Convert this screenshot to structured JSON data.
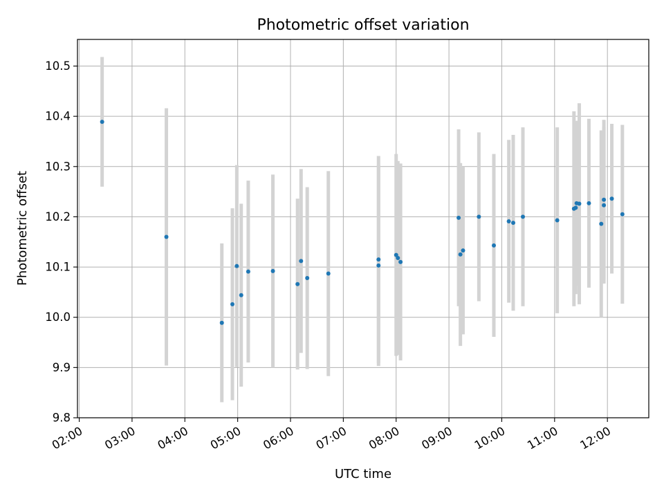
{
  "chart_data": {
    "type": "scatter",
    "title": "Photometric offset variation",
    "xlabel": "UTC time",
    "ylabel": "Photometric offset",
    "x_format": "HH:MM",
    "xlim": [
      "01:58",
      "12:47"
    ],
    "ylim": [
      9.8,
      10.553
    ],
    "grid": true,
    "x_ticks": [
      "02:00",
      "03:00",
      "04:00",
      "05:00",
      "06:00",
      "07:00",
      "08:00",
      "09:00",
      "10:00",
      "11:00",
      "12:00"
    ],
    "y_ticks": [
      9.8,
      9.9,
      10.0,
      10.1,
      10.2,
      10.3,
      10.4,
      10.5
    ],
    "colors": {
      "point": "#1f77b4",
      "errorbar": "#d3d3d3",
      "grid": "#b0b0b0"
    },
    "points": [
      {
        "x": "02:26",
        "y": 10.389,
        "err": 0.129
      },
      {
        "x": "03:39",
        "y": 10.16,
        "err": 0.256
      },
      {
        "x": "04:42",
        "y": 9.989,
        "err": 0.158
      },
      {
        "x": "04:54",
        "y": 10.026,
        "err": 0.191
      },
      {
        "x": "04:59",
        "y": 10.102,
        "err": 0.201
      },
      {
        "x": "05:04",
        "y": 10.044,
        "err": 0.182
      },
      {
        "x": "05:12",
        "y": 10.091,
        "err": 0.181
      },
      {
        "x": "05:40",
        "y": 10.092,
        "err": 0.192
      },
      {
        "x": "06:08",
        "y": 10.066,
        "err": 0.17
      },
      {
        "x": "06:12",
        "y": 10.112,
        "err": 0.183
      },
      {
        "x": "06:19",
        "y": 10.078,
        "err": 0.181
      },
      {
        "x": "06:43",
        "y": 10.087,
        "err": 0.204
      },
      {
        "x": "07:40",
        "y": 10.115,
        "err": 0.206
      },
      {
        "x": "07:40",
        "y": 10.103,
        "err": 0.2
      },
      {
        "x": "08:00",
        "y": 10.124,
        "err": 0.201
      },
      {
        "x": "08:02",
        "y": 10.118,
        "err": 0.193
      },
      {
        "x": "08:05",
        "y": 10.11,
        "err": 0.196
      },
      {
        "x": "09:11",
        "y": 10.198,
        "err": 0.176
      },
      {
        "x": "09:13",
        "y": 10.125,
        "err": 0.182
      },
      {
        "x": "09:16",
        "y": 10.133,
        "err": 0.167
      },
      {
        "x": "09:34",
        "y": 10.2,
        "err": 0.168
      },
      {
        "x": "09:51",
        "y": 10.143,
        "err": 0.182
      },
      {
        "x": "10:08",
        "y": 10.191,
        "err": 0.162
      },
      {
        "x": "10:13",
        "y": 10.188,
        "err": 0.175
      },
      {
        "x": "10:24",
        "y": 10.2,
        "err": 0.178
      },
      {
        "x": "11:03",
        "y": 10.193,
        "err": 0.185
      },
      {
        "x": "11:22",
        "y": 10.216,
        "err": 0.194
      },
      {
        "x": "11:24",
        "y": 10.218,
        "err": 0.172
      },
      {
        "x": "11:25",
        "y": 10.227,
        "err": 0.164
      },
      {
        "x": "11:28",
        "y": 10.226,
        "err": 0.2
      },
      {
        "x": "11:39",
        "y": 10.227,
        "err": 0.168
      },
      {
        "x": "11:53",
        "y": 10.186,
        "err": 0.186
      },
      {
        "x": "11:56",
        "y": 10.223,
        "err": 0.156
      },
      {
        "x": "11:56",
        "y": 10.234,
        "err": 0.159
      },
      {
        "x": "12:05",
        "y": 10.236,
        "err": 0.149
      },
      {
        "x": "12:17",
        "y": 10.205,
        "err": 0.178
      }
    ]
  }
}
